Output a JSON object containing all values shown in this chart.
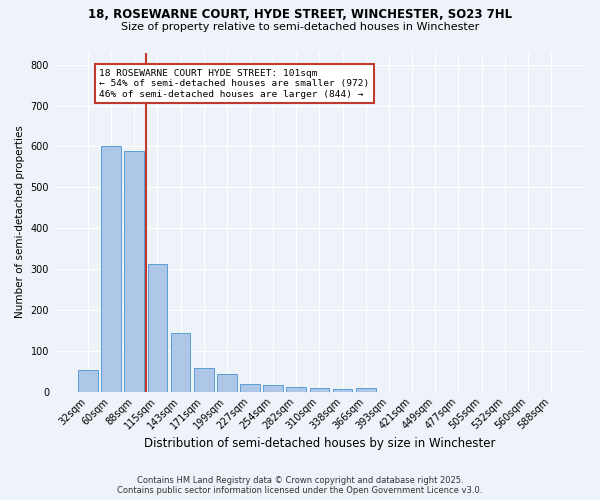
{
  "title1": "18, ROSEWARNE COURT, HYDE STREET, WINCHESTER, SO23 7HL",
  "title2": "Size of property relative to semi-detached houses in Winchester",
  "xlabel": "Distribution of semi-detached houses by size in Winchester",
  "ylabel": "Number of semi-detached properties",
  "footer1": "Contains HM Land Registry data © Crown copyright and database right 2025.",
  "footer2": "Contains public sector information licensed under the Open Government Licence v3.0.",
  "categories": [
    "32sqm",
    "60sqm",
    "88sqm",
    "115sqm",
    "143sqm",
    "171sqm",
    "199sqm",
    "227sqm",
    "254sqm",
    "282sqm",
    "310sqm",
    "338sqm",
    "366sqm",
    "393sqm",
    "421sqm",
    "449sqm",
    "477sqm",
    "505sqm",
    "532sqm",
    "560sqm",
    "588sqm"
  ],
  "values": [
    53,
    600,
    590,
    312,
    143,
    57,
    42,
    18,
    15,
    11,
    8,
    6,
    9,
    0,
    0,
    0,
    0,
    0,
    0,
    0,
    0
  ],
  "bar_color": "#aec6e8",
  "bar_edge_color": "#5a9fd4",
  "bg_color": "#eef2f9",
  "grid_color": "#ffffff",
  "annotation_text": "18 ROSEWARNE COURT HYDE STREET: 101sqm\n← 54% of semi-detached houses are smaller (972)\n46% of semi-detached houses are larger (844) →",
  "vline_x": 2.5,
  "vline_color": "#c0392b",
  "annotation_box_color": "#ffffff",
  "annotation_box_edge": "#c0392b",
  "ylim": [
    0,
    830
  ],
  "yticks": [
    0,
    100,
    200,
    300,
    400,
    500,
    600,
    700,
    800
  ]
}
